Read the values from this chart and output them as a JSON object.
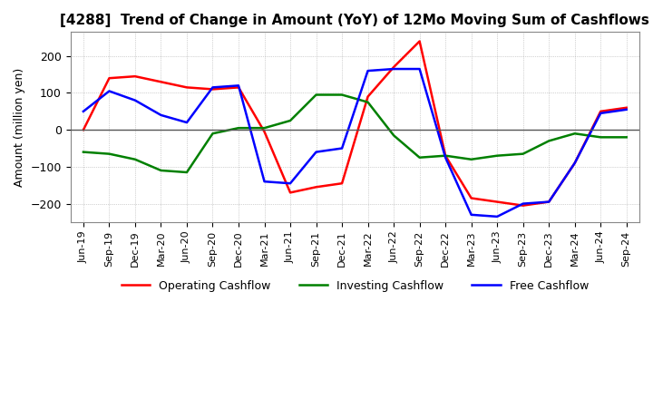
{
  "title": "[4288]  Trend of Change in Amount (YoY) of 12Mo Moving Sum of Cashflows",
  "ylabel": "Amount (million yen)",
  "x_labels": [
    "Jun-19",
    "Sep-19",
    "Dec-19",
    "Mar-20",
    "Jun-20",
    "Sep-20",
    "Dec-20",
    "Mar-21",
    "Jun-21",
    "Sep-21",
    "Dec-21",
    "Mar-22",
    "Jun-22",
    "Sep-22",
    "Dec-22",
    "Mar-23",
    "Jun-23",
    "Sep-23",
    "Dec-23",
    "Mar-24",
    "Jun-24",
    "Sep-24"
  ],
  "operating": [
    0,
    140,
    145,
    130,
    115,
    110,
    115,
    -5,
    -170,
    -155,
    -145,
    90,
    170,
    240,
    -70,
    -185,
    -195,
    -205,
    -195,
    -90,
    50,
    60
  ],
  "investing": [
    -60,
    -65,
    -80,
    -110,
    -115,
    -10,
    5,
    5,
    25,
    95,
    95,
    75,
    -15,
    -75,
    -70,
    -80,
    -70,
    -65,
    -30,
    -10,
    -20,
    -20
  ],
  "free": [
    50,
    105,
    80,
    40,
    20,
    115,
    120,
    -140,
    -145,
    -60,
    -50,
    160,
    165,
    165,
    -75,
    -230,
    -235,
    -200,
    -195,
    -90,
    45,
    55
  ],
  "ylim": [
    -250,
    265
  ],
  "yticks": [
    -200,
    -100,
    0,
    100,
    200
  ],
  "colors": {
    "operating": "#ff0000",
    "investing": "#008000",
    "free": "#0000ff"
  },
  "legend_labels": [
    "Operating Cashflow",
    "Investing Cashflow",
    "Free Cashflow"
  ],
  "background_color": "#ffffff",
  "grid_color": "#aaaaaa",
  "zero_line_color": "#555555"
}
